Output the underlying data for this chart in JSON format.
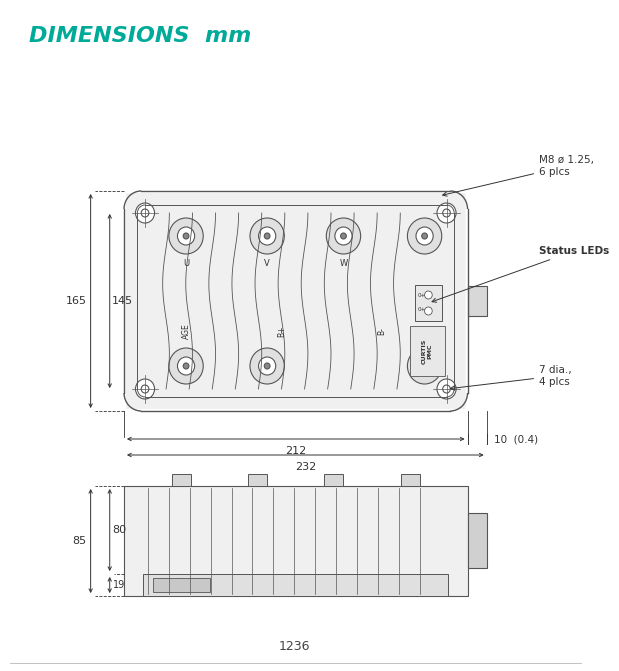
{
  "title": "DIMENSIONS  mm",
  "title_color": "#00AA99",
  "title_fontsize": 16,
  "page_number": "1236",
  "background_color": "#FFFFFF",
  "line_color": "#555555",
  "dim_color": "#333333",
  "annotations": {
    "m8": "M8 ø 1.25,\n6 plcs",
    "status_leds": "Status LEDs",
    "seven_dia": "7 dia.,\n4 plcs",
    "ten": "10  (0.4)"
  },
  "dims_top_view": {
    "height_165": "165",
    "height_145": "145",
    "width_212": "212",
    "width_232": "232"
  },
  "dims_side_view": {
    "height_85": "85",
    "height_80": "80",
    "height_19": "19"
  }
}
